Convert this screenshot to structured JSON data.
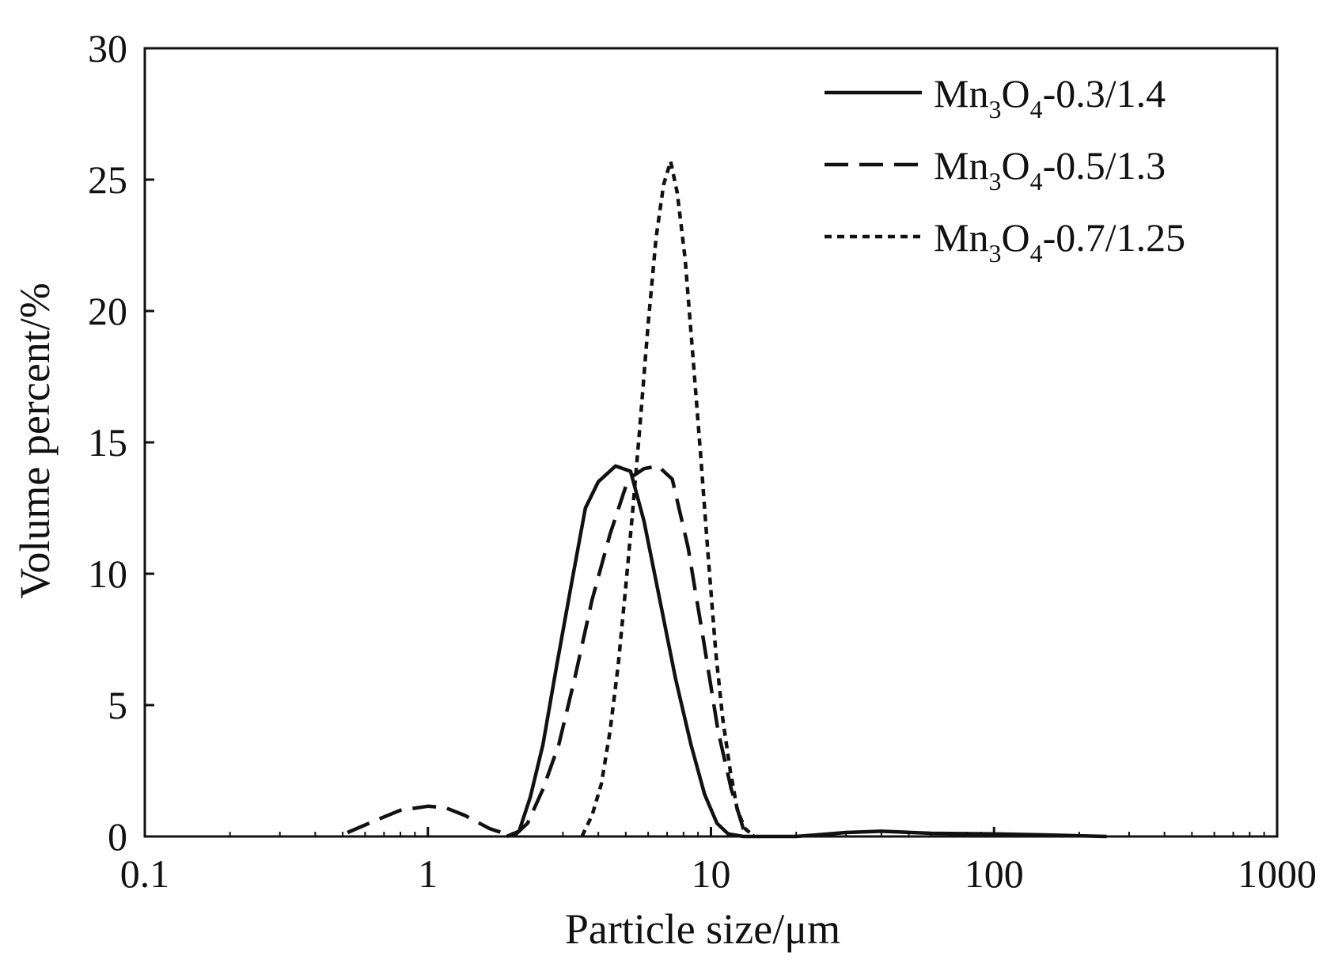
{
  "chart_data": {
    "type": "line",
    "title": "",
    "xlabel": "Particle size/μm",
    "ylabel": "Volume percent/%",
    "x_scale": "log",
    "xlim": [
      0.1,
      1000
    ],
    "ylim": [
      0,
      30
    ],
    "x_ticks": [
      0.1,
      1,
      10,
      100,
      1000
    ],
    "x_tick_labels": [
      "0.1",
      "1",
      "10",
      "100",
      "1000"
    ],
    "y_ticks": [
      0,
      5,
      10,
      15,
      20,
      25,
      30
    ],
    "y_tick_labels": [
      "0",
      "5",
      "10",
      "15",
      "20",
      "25",
      "30"
    ],
    "grid": false,
    "legend_position": "top-right",
    "series": [
      {
        "name": "Mn3O4-0.3/1.4",
        "legend": {
          "main": "Mn",
          "sub1": "3",
          "mid": "O",
          "sub2": "4",
          "tail": "-0.3/1.4"
        },
        "style": "solid",
        "x": [
          1.9,
          2.1,
          2.3,
          2.55,
          2.85,
          3.2,
          3.6,
          4.0,
          4.6,
          5.2,
          5.8,
          6.6,
          7.5,
          8.5,
          9.5,
          10.5,
          11.5,
          13.0,
          20,
          30,
          40,
          60,
          100,
          150,
          250
        ],
        "y": [
          0,
          0.2,
          1.5,
          3.5,
          6.5,
          9.5,
          12.5,
          13.5,
          14.1,
          13.9,
          12.0,
          9.0,
          6.0,
          3.5,
          1.6,
          0.5,
          0.1,
          0,
          0,
          0.15,
          0.2,
          0.12,
          0.1,
          0.06,
          0
        ]
      },
      {
        "name": "Mn3O4-0.5/1.3",
        "legend": {
          "main": "Mn",
          "sub1": "3",
          "mid": "O",
          "sub2": "4",
          "tail": "-0.5/1.3"
        },
        "style": "dashed",
        "x": [
          0.52,
          0.65,
          0.8,
          1.0,
          1.15,
          1.35,
          1.65,
          1.9,
          2.05,
          2.25,
          2.55,
          2.9,
          3.3,
          3.8,
          4.4,
          5.1,
          5.8,
          6.5,
          7.3,
          8.3,
          9.4,
          10.6,
          11.8,
          13.0,
          14.2
        ],
        "y": [
          0.15,
          0.6,
          1.0,
          1.15,
          1.1,
          0.8,
          0.3,
          0.08,
          0.1,
          0.5,
          1.8,
          3.5,
          6.0,
          9.0,
          11.5,
          13.6,
          14.0,
          14.1,
          13.6,
          11.0,
          7.5,
          4.0,
          1.8,
          0.3,
          0
        ]
      },
      {
        "name": "Mn3O4-0.7/1.25",
        "legend": {
          "main": "Mn",
          "sub1": "3",
          "mid": "O",
          "sub2": "4",
          "tail": "-0.7/1.25"
        },
        "style": "dotted",
        "x": [
          3.5,
          3.8,
          4.1,
          4.4,
          4.7,
          5.0,
          5.3,
          5.6,
          6.0,
          6.4,
          6.8,
          7.2,
          7.6,
          8.1,
          8.6,
          9.2,
          9.8,
          10.4,
          11.0,
          11.7,
          12.4,
          13.2,
          14.2
        ],
        "y": [
          0,
          0.8,
          2.0,
          4.0,
          6.5,
          9.5,
          12.5,
          15.5,
          19.5,
          22.8,
          24.8,
          25.7,
          24.5,
          22.0,
          18.5,
          14.5,
          10.5,
          7.0,
          4.5,
          2.5,
          1.0,
          0.3,
          0
        ]
      }
    ]
  }
}
